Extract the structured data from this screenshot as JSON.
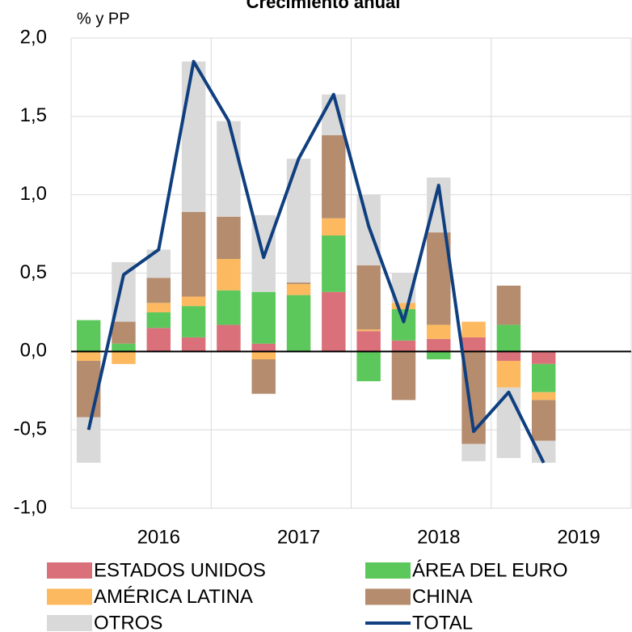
{
  "chart_data": {
    "type": "bar",
    "stacked": true,
    "title": "Crecimiento anual",
    "y_axis_label": "% y PP",
    "categories": [
      null,
      null,
      "2016",
      null,
      null,
      null,
      "2017",
      null,
      null,
      null,
      "2018",
      null,
      null,
      null,
      "2019",
      null
    ],
    "series": [
      {
        "name": "ESTADOS UNIDOS",
        "color": "#d9707a",
        "values": [
          0,
          0,
          0.15,
          0.09,
          0.17,
          0.05,
          0,
          0.38,
          0.13,
          0.07,
          0.08,
          0.09,
          -0.06,
          -0.08,
          null,
          null
        ]
      },
      {
        "name": "ÁREA DEL EURO",
        "color": "#5cc85c",
        "values": [
          0.2,
          0.05,
          0.1,
          0.2,
          0.22,
          0.33,
          0.36,
          0.36,
          -0.19,
          0.2,
          -0.05,
          0,
          0.17,
          -0.18,
          null,
          null
        ]
      },
      {
        "name": "AMÉRICA LATINA",
        "color": "#fdb95f",
        "values": [
          -0.06,
          -0.08,
          0.06,
          0.06,
          0.2,
          -0.05,
          0.07,
          0.11,
          0.01,
          0.04,
          0.09,
          0.1,
          -0.17,
          -0.05,
          null,
          null
        ]
      },
      {
        "name": "CHINA",
        "color": "#b58c6e",
        "values": [
          -0.36,
          0.14,
          0.16,
          0.54,
          0.27,
          -0.22,
          0.01,
          0.53,
          0.41,
          -0.31,
          0.59,
          -0.59,
          0.25,
          -0.26,
          null,
          null
        ]
      },
      {
        "name": "OTROS",
        "color": "#d9d9d9",
        "values": [
          -0.29,
          0.38,
          0.18,
          0.96,
          0.61,
          0.49,
          0.79,
          0.26,
          0.45,
          0.19,
          0.35,
          -0.11,
          -0.45,
          -0.14,
          null,
          null
        ]
      },
      {
        "name": "TOTAL",
        "type": "line",
        "color": "#0f3f7f",
        "values": [
          -0.5,
          0.49,
          0.65,
          1.85,
          1.47,
          0.6,
          1.23,
          1.64,
          0.8,
          0.19,
          1.06,
          -0.51,
          -0.26,
          -0.71,
          null,
          null
        ]
      }
    ],
    "ylim": [
      -1.0,
      2.0
    ],
    "yticks": [
      {
        "value": -1.0,
        "label": "-1,0"
      },
      {
        "value": -0.5,
        "label": "-0,5"
      },
      {
        "value": 0,
        "label": "0,0"
      },
      {
        "value": 0.5,
        "label": "0,5"
      },
      {
        "value": 1.0,
        "label": "1,0"
      },
      {
        "value": 1.5,
        "label": "1,5"
      },
      {
        "value": 2.0,
        "label": "2,0"
      }
    ],
    "grid": true
  }
}
